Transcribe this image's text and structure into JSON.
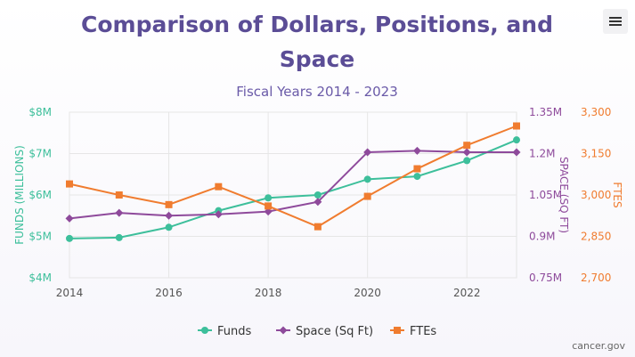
{
  "chart_data": {
    "type": "line",
    "title_lines": [
      "Comparison of Dollars, Positions, and",
      "Space"
    ],
    "subtitle": "Fiscal Years 2014 - 2023",
    "x": [
      2014,
      2015,
      2016,
      2017,
      2018,
      2019,
      2020,
      2021,
      2022,
      2023
    ],
    "x_ticks": [
      "2014",
      "2016",
      "2018",
      "2020",
      "2022"
    ],
    "axes": {
      "left": {
        "label": "FUNDS (MILLIONS)",
        "ticks": [
          "$4M",
          "$5M",
          "$6M",
          "$7M",
          "$8M"
        ],
        "range": [
          4,
          8
        ],
        "color": "#3dbf9b"
      },
      "right1": {
        "label": "SPACE (SQ FT)",
        "ticks": [
          "0.75M",
          "0.9M",
          "1.05M",
          "1.2M",
          "1.35M"
        ],
        "range": [
          0.75,
          1.35
        ],
        "color": "#8e4a9b"
      },
      "right2": {
        "label": "FTES",
        "ticks": [
          "2,700",
          "2,850",
          "3,000",
          "3,150",
          "3,300"
        ],
        "range": [
          2700,
          3300
        ],
        "color": "#f07c2f"
      }
    },
    "series": [
      {
        "name": "Funds",
        "axis": "left",
        "color": "#3dbf9b",
        "marker": "circle",
        "values": [
          4.95,
          4.97,
          5.22,
          5.62,
          5.93,
          6.0,
          6.38,
          6.45,
          6.83,
          7.33
        ]
      },
      {
        "name": "Space (Sq Ft)",
        "axis": "right1",
        "color": "#8e4a9b",
        "marker": "diamond",
        "values": [
          0.965,
          0.985,
          0.975,
          0.98,
          0.99,
          1.025,
          1.205,
          1.21,
          1.205,
          1.205
        ]
      },
      {
        "name": "FTEs",
        "axis": "right2",
        "color": "#f07c2f",
        "marker": "square",
        "values": [
          3040,
          3000,
          2965,
          3030,
          2960,
          2885,
          2995,
          3095,
          3180,
          3250
        ]
      }
    ],
    "grid": true,
    "legend_position": "bottom-center"
  },
  "credit": "cancer.gov",
  "menu_icon": "hamburger-icon"
}
